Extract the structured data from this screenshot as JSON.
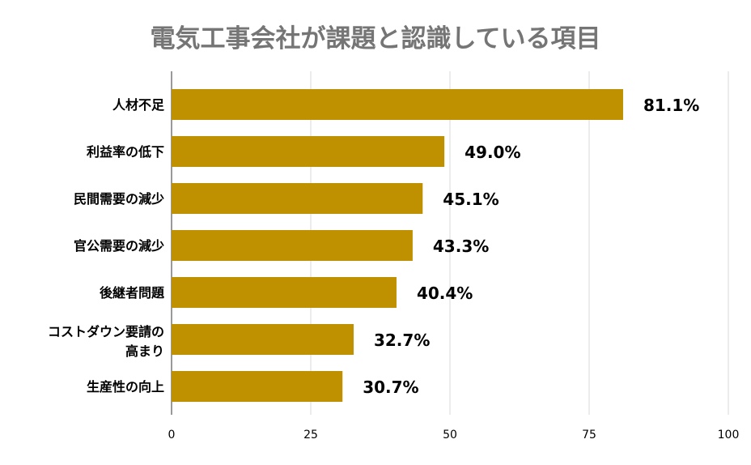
{
  "chart_data": {
    "type": "bar",
    "orientation": "horizontal",
    "title": "電気工事会社が課題と認識している項目",
    "categories": [
      "人材不足",
      "利益率の低下",
      "民間需要の減少",
      "官公需要の減少",
      "後継者問題",
      "コストダウン要請の高まり",
      "生産性の向上"
    ],
    "category_lines": [
      [
        "人材不足"
      ],
      [
        "利益率の低下"
      ],
      [
        "民間需要の減少"
      ],
      [
        "官公需要の減少"
      ],
      [
        "後継者問題"
      ],
      [
        "コストダウン要請の",
        "高まり"
      ],
      [
        "生産性の向上"
      ]
    ],
    "values": [
      81.1,
      49.0,
      45.1,
      43.3,
      40.4,
      32.7,
      30.7
    ],
    "value_labels": [
      "81.1%",
      "49.0%",
      "45.1%",
      "43.3%",
      "40.4%",
      "32.7%",
      "30.7%"
    ],
    "xlim": [
      0,
      100
    ],
    "xticks": [
      0,
      25,
      50,
      75,
      100
    ],
    "grid": true,
    "colors": {
      "bar": "#BF9000",
      "grid": "#D9D9D9",
      "axis": "#333333"
    }
  }
}
